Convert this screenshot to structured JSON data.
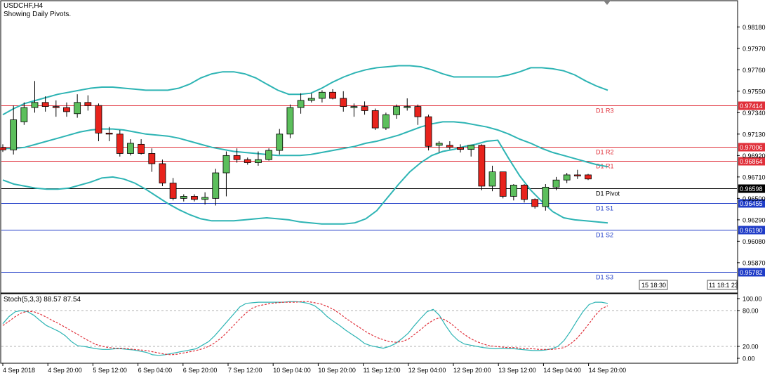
{
  "header": {
    "symbol": "USDCHF,H4",
    "note": "Showing Daily Pivots."
  },
  "colors": {
    "bull": "#5cbf5c",
    "bear": "#e8231c",
    "band": "#2db4b4",
    "pivot_resistance": "#e0303a",
    "pivot_support": "#1f3cc7",
    "pivot_main": "#000000",
    "stoch_main": "#2db4b4",
    "stoch_signal": "#e0303a"
  },
  "chart_data": [
    {
      "type": "candlestick",
      "title": "USDCHF,H4",
      "y_axis_ticks": [
        "0.98180",
        "0.97970",
        "0.97760",
        "0.97550",
        "0.97340",
        "0.97130",
        "0.96920",
        "0.96710",
        "0.96500",
        "0.96290",
        "0.96080",
        "0.95870"
      ],
      "ylim": [
        0.9558,
        0.9843
      ],
      "pivots": [
        {
          "name": "D1 R3",
          "value": 0.97414,
          "label": "0.97414",
          "kind": "resistance"
        },
        {
          "name": "D1 R2",
          "value": 0.97006,
          "label": "0.97006",
          "kind": "resistance"
        },
        {
          "name": "D1 R1",
          "value": 0.96864,
          "label": "0.96864",
          "kind": "resistance"
        },
        {
          "name": "D1 Pivot",
          "value": 0.96598,
          "label": "0.96598",
          "kind": "main"
        },
        {
          "name": "D1 S1",
          "value": 0.96455,
          "label": "0.96455",
          "kind": "support"
        },
        {
          "name": "D1 S2",
          "value": 0.9619,
          "label": "0.96190",
          "kind": "support"
        },
        {
          "name": "D1 S3",
          "value": 0.95782,
          "label": "0.95782",
          "kind": "support"
        }
      ],
      "candles": [
        {
          "o": 0.96995,
          "h": 0.9703,
          "l": 0.96955,
          "c": 0.96975
        },
        {
          "o": 0.96975,
          "h": 0.9741,
          "l": 0.9693,
          "c": 0.9727
        },
        {
          "o": 0.9725,
          "h": 0.9744,
          "l": 0.9722,
          "c": 0.9739
        },
        {
          "o": 0.9739,
          "h": 0.9765,
          "l": 0.9734,
          "c": 0.9744
        },
        {
          "o": 0.9744,
          "h": 0.975,
          "l": 0.9735,
          "c": 0.974
        },
        {
          "o": 0.974,
          "h": 0.9746,
          "l": 0.973,
          "c": 0.9739
        },
        {
          "o": 0.9739,
          "h": 0.9744,
          "l": 0.973,
          "c": 0.9735
        },
        {
          "o": 0.9733,
          "h": 0.9752,
          "l": 0.9729,
          "c": 0.9744
        },
        {
          "o": 0.9744,
          "h": 0.9751,
          "l": 0.9736,
          "c": 0.9741
        },
        {
          "o": 0.9741,
          "h": 0.9743,
          "l": 0.9706,
          "c": 0.9714
        },
        {
          "o": 0.9714,
          "h": 0.972,
          "l": 0.9706,
          "c": 0.9713
        },
        {
          "o": 0.9713,
          "h": 0.9717,
          "l": 0.9691,
          "c": 0.9694
        },
        {
          "o": 0.9694,
          "h": 0.9708,
          "l": 0.9692,
          "c": 0.9704
        },
        {
          "o": 0.9703,
          "h": 0.9708,
          "l": 0.9693,
          "c": 0.9694
        },
        {
          "o": 0.9694,
          "h": 0.9699,
          "l": 0.9676,
          "c": 0.9684
        },
        {
          "o": 0.9684,
          "h": 0.9688,
          "l": 0.9662,
          "c": 0.9665
        },
        {
          "o": 0.9665,
          "h": 0.967,
          "l": 0.9648,
          "c": 0.965
        },
        {
          "o": 0.965,
          "h": 0.9654,
          "l": 0.9647,
          "c": 0.9652
        },
        {
          "o": 0.9652,
          "h": 0.9654,
          "l": 0.9647,
          "c": 0.9649
        },
        {
          "o": 0.9649,
          "h": 0.9656,
          "l": 0.9644,
          "c": 0.9651
        },
        {
          "o": 0.965,
          "h": 0.9679,
          "l": 0.9643,
          "c": 0.9675
        },
        {
          "o": 0.9675,
          "h": 0.9696,
          "l": 0.9652,
          "c": 0.9692
        },
        {
          "o": 0.9692,
          "h": 0.9699,
          "l": 0.9685,
          "c": 0.9688
        },
        {
          "o": 0.9688,
          "h": 0.969,
          "l": 0.9683,
          "c": 0.9685
        },
        {
          "o": 0.9685,
          "h": 0.9696,
          "l": 0.9682,
          "c": 0.9688
        },
        {
          "o": 0.9688,
          "h": 0.9699,
          "l": 0.9687,
          "c": 0.9697
        },
        {
          "o": 0.9697,
          "h": 0.9718,
          "l": 0.9693,
          "c": 0.9713
        },
        {
          "o": 0.9713,
          "h": 0.9742,
          "l": 0.9709,
          "c": 0.9739
        },
        {
          "o": 0.9739,
          "h": 0.9753,
          "l": 0.9733,
          "c": 0.9746
        },
        {
          "o": 0.9746,
          "h": 0.9753,
          "l": 0.9744,
          "c": 0.9748
        },
        {
          "o": 0.9748,
          "h": 0.9756,
          "l": 0.9744,
          "c": 0.9754
        },
        {
          "o": 0.9754,
          "h": 0.9757,
          "l": 0.9747,
          "c": 0.9748
        },
        {
          "o": 0.9748,
          "h": 0.9755,
          "l": 0.9735,
          "c": 0.974
        },
        {
          "o": 0.974,
          "h": 0.9743,
          "l": 0.973,
          "c": 0.974
        },
        {
          "o": 0.974,
          "h": 0.9745,
          "l": 0.9732,
          "c": 0.9736
        },
        {
          "o": 0.9736,
          "h": 0.9738,
          "l": 0.9717,
          "c": 0.9719
        },
        {
          "o": 0.9719,
          "h": 0.9734,
          "l": 0.9717,
          "c": 0.9732
        },
        {
          "o": 0.9732,
          "h": 0.9742,
          "l": 0.9728,
          "c": 0.974
        },
        {
          "o": 0.974,
          "h": 0.9748,
          "l": 0.9736,
          "c": 0.974
        },
        {
          "o": 0.974,
          "h": 0.9742,
          "l": 0.9722,
          "c": 0.973
        },
        {
          "o": 0.973,
          "h": 0.9732,
          "l": 0.9697,
          "c": 0.9701
        },
        {
          "o": 0.9702,
          "h": 0.9706,
          "l": 0.9695,
          "c": 0.9704
        },
        {
          "o": 0.9702,
          "h": 0.9706,
          "l": 0.9698,
          "c": 0.97
        },
        {
          "o": 0.97,
          "h": 0.9703,
          "l": 0.9695,
          "c": 0.9698
        },
        {
          "o": 0.9698,
          "h": 0.9702,
          "l": 0.9691,
          "c": 0.9702
        },
        {
          "o": 0.9702,
          "h": 0.9703,
          "l": 0.9658,
          "c": 0.9662
        },
        {
          "o": 0.9662,
          "h": 0.9682,
          "l": 0.9657,
          "c": 0.9676
        },
        {
          "o": 0.9676,
          "h": 0.9676,
          "l": 0.965,
          "c": 0.9652
        },
        {
          "o": 0.9652,
          "h": 0.9664,
          "l": 0.9648,
          "c": 0.9663
        },
        {
          "o": 0.9663,
          "h": 0.9664,
          "l": 0.9646,
          "c": 0.9649
        },
        {
          "o": 0.9649,
          "h": 0.965,
          "l": 0.964,
          "c": 0.9642
        },
        {
          "o": 0.9642,
          "h": 0.9664,
          "l": 0.9638,
          "c": 0.9661
        },
        {
          "o": 0.9661,
          "h": 0.9671,
          "l": 0.9658,
          "c": 0.9668
        },
        {
          "o": 0.9668,
          "h": 0.9675,
          "l": 0.9665,
          "c": 0.9673
        },
        {
          "o": 0.9673,
          "h": 0.9678,
          "l": 0.9669,
          "c": 0.9672
        },
        {
          "o": 0.9673,
          "h": 0.9674,
          "l": 0.9668,
          "c": 0.9669
        }
      ],
      "bollinger": {
        "upper": [
          0.9732,
          0.9738,
          0.9743,
          0.9746,
          0.9749,
          0.9752,
          0.9754,
          0.9756,
          0.9758,
          0.9759,
          0.9759,
          0.9758,
          0.9757,
          0.9756,
          0.9756,
          0.9756,
          0.9758,
          0.9762,
          0.9768,
          0.9772,
          0.9774,
          0.9774,
          0.9772,
          0.9768,
          0.9762,
          0.9756,
          0.9752,
          0.9752,
          0.9753,
          0.9758,
          0.9764,
          0.9769,
          0.9773,
          0.9776,
          0.9778,
          0.9779,
          0.978,
          0.978,
          0.9779,
          0.9776,
          0.9772,
          0.9769,
          0.9769,
          0.9769,
          0.9769,
          0.9769,
          0.9771,
          0.9774,
          0.9778,
          0.9778,
          0.9777,
          0.9775,
          0.9771,
          0.9765,
          0.976,
          0.9756
        ],
        "middle": [
          0.9699,
          0.9699,
          0.97,
          0.9703,
          0.9706,
          0.9709,
          0.9712,
          0.9715,
          0.9717,
          0.9718,
          0.9718,
          0.9717,
          0.9715,
          0.9713,
          0.9712,
          0.9711,
          0.9709,
          0.9706,
          0.9703,
          0.97,
          0.9698,
          0.9696,
          0.9695,
          0.9694,
          0.9693,
          0.9692,
          0.9692,
          0.9692,
          0.9693,
          0.9695,
          0.9697,
          0.9699,
          0.9701,
          0.9704,
          0.9706,
          0.9709,
          0.9712,
          0.9716,
          0.972,
          0.9723,
          0.9725,
          0.9725,
          0.9724,
          0.9722,
          0.972,
          0.9717,
          0.9713,
          0.9708,
          0.9704,
          0.9699,
          0.9695,
          0.9692,
          0.9689,
          0.9686,
          0.9683,
          0.9681
        ],
        "lower": [
          0.9668,
          0.9664,
          0.9662,
          0.966,
          0.9659,
          0.9659,
          0.966,
          0.9663,
          0.9666,
          0.967,
          0.9671,
          0.9669,
          0.9665,
          0.9659,
          0.9652,
          0.9645,
          0.9639,
          0.9634,
          0.963,
          0.9628,
          0.9628,
          0.9628,
          0.9629,
          0.963,
          0.9631,
          0.963,
          0.9629,
          0.9627,
          0.9626,
          0.9625,
          0.9625,
          0.9625,
          0.9626,
          0.963,
          0.9638,
          0.9651,
          0.9664,
          0.9676,
          0.9685,
          0.9692,
          0.9696,
          0.9698,
          0.9701,
          0.9703,
          0.9706,
          0.9707,
          0.9689,
          0.9672,
          0.9658,
          0.9647,
          0.9637,
          0.9631,
          0.9629,
          0.9628,
          0.9627,
          0.9626
        ]
      }
    },
    {
      "type": "line",
      "title": "Stoch(5,3,3) 88.57 87.54",
      "y_axis_ticks": [
        "100.00",
        "80.00",
        "20.00",
        "0.00"
      ],
      "ylim": [
        0,
        100
      ],
      "levels": [
        80,
        20
      ],
      "series": [
        {
          "values": [
            58,
            70,
            78,
            80,
            78,
            72,
            63,
            55,
            50,
            45,
            38,
            28,
            21,
            20,
            18,
            16,
            15,
            15,
            16,
            16,
            15,
            14,
            12,
            10,
            6,
            5,
            6,
            8,
            10,
            12,
            14,
            16,
            22,
            28,
            38,
            50,
            62,
            74,
            86,
            92,
            93,
            94,
            94,
            94,
            94,
            94,
            95,
            95,
            94,
            92,
            88,
            80,
            70,
            62,
            55,
            47,
            40,
            33,
            25,
            21,
            19,
            17,
            20,
            25,
            33,
            42,
            55,
            67,
            78,
            82,
            72,
            55,
            40,
            30,
            24,
            22,
            20,
            18,
            17,
            16,
            17,
            16,
            16,
            15,
            14,
            13,
            13,
            14,
            16,
            20,
            30,
            45,
            62,
            78,
            90,
            94,
            94,
            92
          ]
        },
        {
          "values": [
            55,
            62,
            70,
            76,
            79,
            78,
            74,
            69,
            63,
            58,
            52,
            46,
            40,
            34,
            28,
            23,
            20,
            18,
            17,
            17,
            16,
            15,
            14,
            13,
            11,
            9,
            7,
            6,
            7,
            9,
            11,
            13,
            16,
            20,
            26,
            34,
            44,
            55,
            66,
            76,
            84,
            88,
            90,
            92,
            93,
            94,
            94,
            94,
            95,
            95,
            93,
            91,
            87,
            82,
            75,
            67,
            60,
            53,
            46,
            40,
            35,
            31,
            28,
            27,
            28,
            32,
            40,
            48,
            57,
            64,
            68,
            64,
            57,
            48,
            40,
            33,
            28,
            24,
            21,
            20,
            19,
            18,
            18,
            17,
            16,
            16,
            15,
            15,
            15,
            16,
            18,
            24,
            33,
            45,
            58,
            72,
            83,
            88
          ]
        }
      ]
    }
  ],
  "x_axis_labels": [
    "4 Sep 2018",
    "4 Sep 20:00",
    "5 Sep 12:00",
    "6 Sep 04:00",
    "6 Sep 20:00",
    "7 Sep 12:00",
    "10 Sep 04:00",
    "10 Sep 20:00",
    "11 Sep 12:00",
    "12 Sep 04:00",
    "12 Sep 20:00",
    "13 Sep 12:00",
    "14 Sep 04:00",
    "14 Sep 20:00"
  ],
  "time_boxes": {
    "left": "15 18:30",
    "right": "11 18:1 23"
  }
}
